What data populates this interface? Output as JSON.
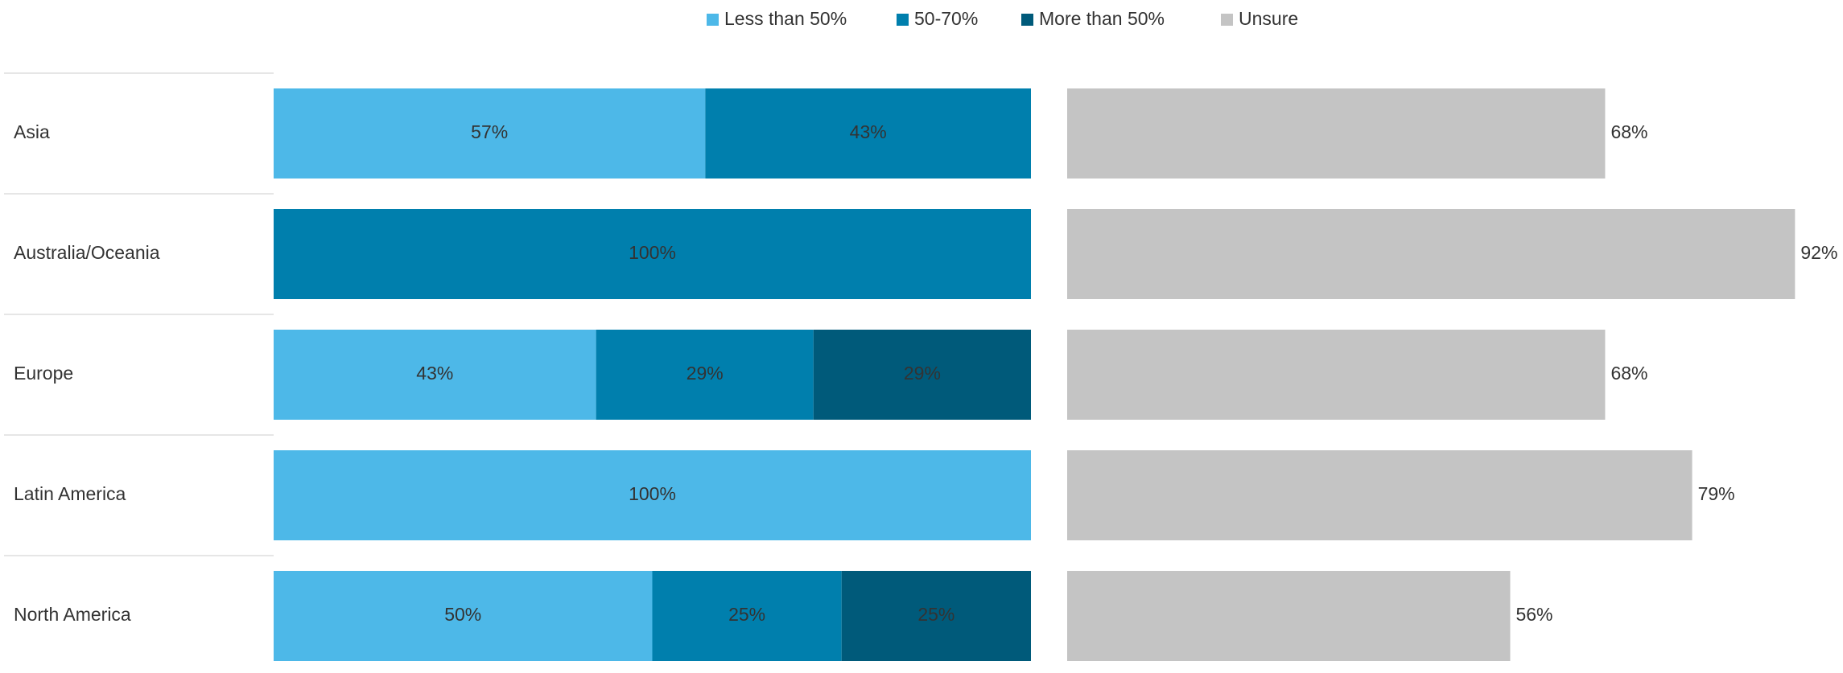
{
  "chart_data": {
    "type": "stacked_bar",
    "categories": [
      "Asia",
      "Australia/Oceania",
      "Europe",
      "Latin America",
      "North America"
    ],
    "series": [
      {
        "name": "Less than 50%",
        "color": "#4db8e8",
        "values": [
          57,
          null,
          43,
          100,
          50
        ],
        "value_labels": [
          "57%",
          null,
          "43%",
          "100%",
          "50%"
        ]
      },
      {
        "name": "50-70%",
        "color": "#007fad",
        "values": [
          43,
          100,
          29,
          null,
          25
        ],
        "value_labels": [
          "43%",
          "100%",
          "29%",
          null,
          "25%"
        ]
      },
      {
        "name": "More than 50%",
        "color": "#005a7a",
        "values": [
          null,
          null,
          29,
          null,
          25
        ],
        "value_labels": [
          null,
          null,
          "29%",
          null,
          "25%"
        ]
      },
      {
        "name": "Unsure",
        "color": "#c4c4c4",
        "values": [
          68,
          92,
          68,
          79,
          56
        ],
        "value_labels": [
          "68%",
          "92%",
          "68%",
          "79%",
          "56%"
        ]
      }
    ]
  }
}
